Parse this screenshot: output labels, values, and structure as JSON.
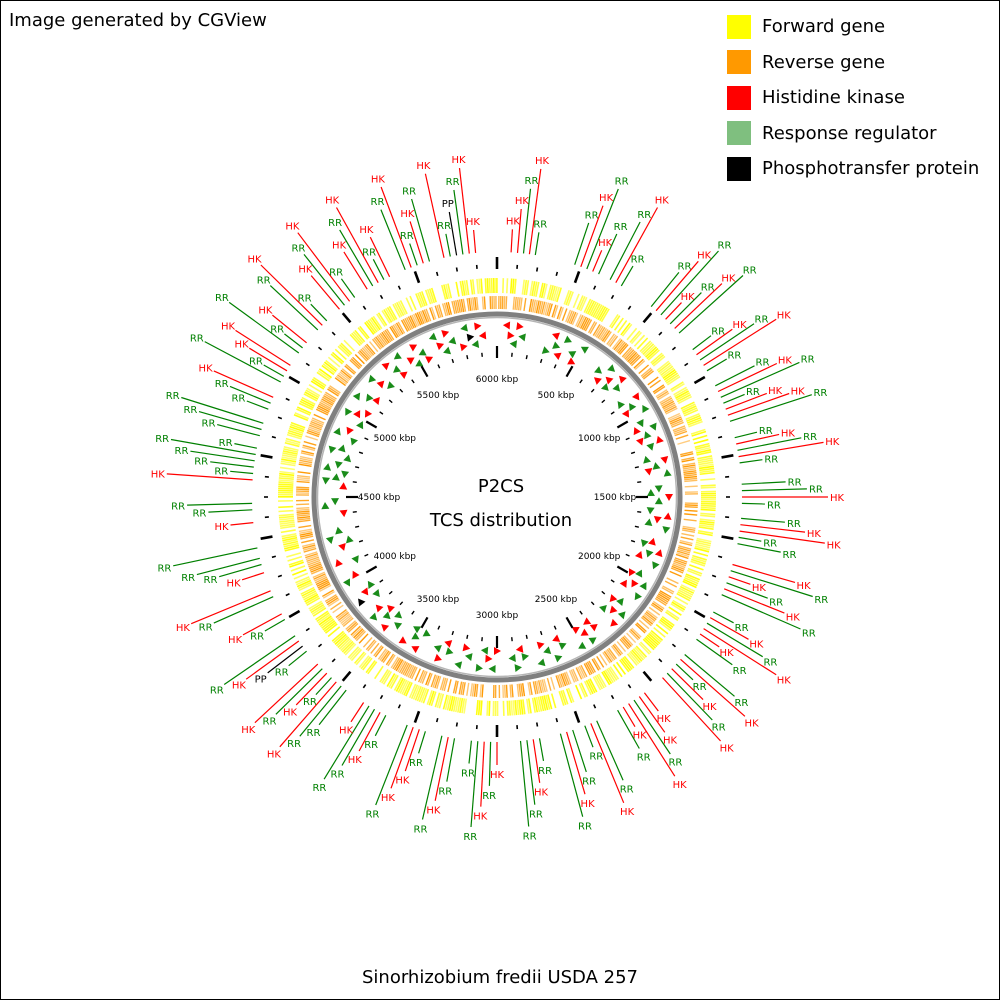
{
  "header": {
    "credit": "Image generated by CGView"
  },
  "legend": {
    "items": [
      {
        "label": "Forward gene",
        "color": "#FFFF00"
      },
      {
        "label": "Reverse gene",
        "color": "#FF9900"
      },
      {
        "label": "Histidine kinase",
        "color": "#FF0000"
      },
      {
        "label": "Response regulator",
        "color": "#7FBF7F"
      },
      {
        "label": "Phosphotransfer protein",
        "color": "#000000"
      }
    ]
  },
  "center": {
    "line1": "P2CS",
    "line2": "TCS distribution"
  },
  "caption": "Sinorhizobium fredii USDA 257",
  "genome": {
    "tick_labels": [
      "500 kbp",
      "1000 kbp",
      "1500 kbp",
      "2000 kbp",
      "2500 kbp",
      "3000 kbp",
      "3500 kbp",
      "4000 kbp",
      "4500 kbp",
      "5000 kbp",
      "5500 kbp",
      "6000 kbp"
    ],
    "track_colors": {
      "forward": "#FFFF00",
      "reverse": "#FF9900",
      "hk": "#FF0000",
      "rr_text": "#008000",
      "rr_line": "#008000",
      "rr_marker": "#1A8C1A",
      "pp": "#000000",
      "backbone": "#808080"
    }
  },
  "features": [
    {
      "t": "HK",
      "d": 3.3
    },
    {
      "t": "HK",
      "d": 4.8
    },
    {
      "t": "RR",
      "d": 6.2
    },
    {
      "t": "HK",
      "d": 7.6
    },
    {
      "t": "RR",
      "d": 9.0
    },
    {
      "t": "RR",
      "d": 18.5
    },
    {
      "t": "HK",
      "d": 20.0
    },
    {
      "t": "RR",
      "d": 21.5
    },
    {
      "t": "HK",
      "d": 23.0
    },
    {
      "t": "RR",
      "d": 24.5
    },
    {
      "t": "RR",
      "d": 27.5
    },
    {
      "t": "HK",
      "d": 29.0
    },
    {
      "t": "RR",
      "d": 30.5
    },
    {
      "t": "RR",
      "d": 39.0
    },
    {
      "t": "HK",
      "d": 40.5
    },
    {
      "t": "RR",
      "d": 42.0
    },
    {
      "t": "HK",
      "d": 43.5
    },
    {
      "t": "RR",
      "d": 45.0
    },
    {
      "t": "HK",
      "d": 46.5
    },
    {
      "t": "RR",
      "d": 48.0
    },
    {
      "t": "RR",
      "d": 53.0
    },
    {
      "t": "HK",
      "d": 54.5
    },
    {
      "t": "RR",
      "d": 56.0
    },
    {
      "t": "HK",
      "d": 57.5
    },
    {
      "t": "RR",
      "d": 59.0
    },
    {
      "t": "RR",
      "d": 63.0
    },
    {
      "t": "HK",
      "d": 64.5
    },
    {
      "t": "RR",
      "d": 66.0
    },
    {
      "t": "RR",
      "d": 67.5
    },
    {
      "t": "HK",
      "d": 69.0
    },
    {
      "t": "HK",
      "d": 70.5
    },
    {
      "t": "RR",
      "d": 72.0
    },
    {
      "t": "RR",
      "d": 76.0
    },
    {
      "t": "HK",
      "d": 77.5
    },
    {
      "t": "RR",
      "d": 79.0
    },
    {
      "t": "HK",
      "d": 80.5
    },
    {
      "t": "RR",
      "d": 82.0
    },
    {
      "t": "RR",
      "d": 87.0
    },
    {
      "t": "RR",
      "d": 88.5
    },
    {
      "t": "HK",
      "d": 90.0
    },
    {
      "t": "RR",
      "d": 91.5
    },
    {
      "t": "RR",
      "d": 95.0
    },
    {
      "t": "HK",
      "d": 96.5
    },
    {
      "t": "HK",
      "d": 98.0
    },
    {
      "t": "RR",
      "d": 99.5
    },
    {
      "t": "RR",
      "d": 101.0
    },
    {
      "t": "HK",
      "d": 106.0
    },
    {
      "t": "RR",
      "d": 107.5
    },
    {
      "t": "HK",
      "d": 109.0
    },
    {
      "t": "RR",
      "d": 110.5
    },
    {
      "t": "HK",
      "d": 112.0
    },
    {
      "t": "RR",
      "d": 113.5
    },
    {
      "t": "RR",
      "d": 118.0
    },
    {
      "t": "HK",
      "d": 119.5
    },
    {
      "t": "RR",
      "d": 121.0
    },
    {
      "t": "HK",
      "d": 122.5
    },
    {
      "t": "HK",
      "d": 124.0
    },
    {
      "t": "RR",
      "d": 125.5
    },
    {
      "t": "RR",
      "d": 130.0
    },
    {
      "t": "HK",
      "d": 131.5
    },
    {
      "t": "RR",
      "d": 133.0
    },
    {
      "t": "HK",
      "d": 134.5
    },
    {
      "t": "RR",
      "d": 136.0
    },
    {
      "t": "HK",
      "d": 137.5
    },
    {
      "t": "HK",
      "d": 143.0
    },
    {
      "t": "HK",
      "d": 144.5
    },
    {
      "t": "RR",
      "d": 146.0
    },
    {
      "t": "HK",
      "d": 147.5
    },
    {
      "t": "HK",
      "d": 149.0
    },
    {
      "t": "RR",
      "d": 150.5
    },
    {
      "t": "RR",
      "d": 156.0
    },
    {
      "t": "HK",
      "d": 157.5
    },
    {
      "t": "RR",
      "d": 159.0
    },
    {
      "t": "RR",
      "d": 162.0
    },
    {
      "t": "HK",
      "d": 163.5
    },
    {
      "t": "RR",
      "d": 165.0
    },
    {
      "t": "RR",
      "d": 170.0
    },
    {
      "t": "HK",
      "d": 171.5
    },
    {
      "t": "RR",
      "d": 173.0
    },
    {
      "t": "RR",
      "d": 174.5
    },
    {
      "t": "HK",
      "d": 180.0
    },
    {
      "t": "RR",
      "d": 181.5
    },
    {
      "t": "HK",
      "d": 183.0
    },
    {
      "t": "RR",
      "d": 184.5
    },
    {
      "t": "RR",
      "d": 186.0
    },
    {
      "t": "RR",
      "d": 190.0
    },
    {
      "t": "HK",
      "d": 191.5
    },
    {
      "t": "RR",
      "d": 193.0
    },
    {
      "t": "RR",
      "d": 197.0
    },
    {
      "t": "HK",
      "d": 198.5
    },
    {
      "t": "HK",
      "d": 200.0
    },
    {
      "t": "RR",
      "d": 201.5
    },
    {
      "t": "RR",
      "d": 207.0
    },
    {
      "t": "HK",
      "d": 208.5
    },
    {
      "t": "RR",
      "d": 210.0
    },
    {
      "t": "RR",
      "d": 211.5
    },
    {
      "t": "HK",
      "d": 213.0
    },
    {
      "t": "RR",
      "d": 218.0
    },
    {
      "t": "RR",
      "d": 219.5
    },
    {
      "t": "HK",
      "d": 221.0
    },
    {
      "t": "RR",
      "d": 222.5
    },
    {
      "t": "HK",
      "d": 224.0
    },
    {
      "t": "RR",
      "d": 225.5
    },
    {
      "t": "HK",
      "d": 227.0
    },
    {
      "t": "RR",
      "d": 231.0
    },
    {
      "t": "PP",
      "d": 232.5
    },
    {
      "t": "HK",
      "d": 234.0
    },
    {
      "t": "RR",
      "d": 235.5
    },
    {
      "t": "RR",
      "d": 240.0
    },
    {
      "t": "HK",
      "d": 241.5
    },
    {
      "t": "RR",
      "d": 246.0
    },
    {
      "t": "HK",
      "d": 247.5
    },
    {
      "t": "HK",
      "d": 252.0
    },
    {
      "t": "RR",
      "d": 254.0
    },
    {
      "t": "RR",
      "d": 255.5
    },
    {
      "t": "RR",
      "d": 258.0
    },
    {
      "t": "HK",
      "d": 264.0
    },
    {
      "t": "RR",
      "d": 267.0
    },
    {
      "t": "RR",
      "d": 268.5
    },
    {
      "t": "HK",
      "d": 274.0
    },
    {
      "t": "RR",
      "d": 275.5
    },
    {
      "t": "RR",
      "d": 277.0
    },
    {
      "t": "RR",
      "d": 278.5
    },
    {
      "t": "RR",
      "d": 280.0
    },
    {
      "t": "RR",
      "d": 281.5
    },
    {
      "t": "RR",
      "d": 284.5
    },
    {
      "t": "RR",
      "d": 286.0
    },
    {
      "t": "RR",
      "d": 287.5
    },
    {
      "t": "RR",
      "d": 291.0
    },
    {
      "t": "RR",
      "d": 292.5
    },
    {
      "t": "HK",
      "d": 294.0
    },
    {
      "t": "RR",
      "d": 298.0
    },
    {
      "t": "RR",
      "d": 299.5
    },
    {
      "t": "HK",
      "d": 301.0
    },
    {
      "t": "HK",
      "d": 302.5
    },
    {
      "t": "RR",
      "d": 306.0
    },
    {
      "t": "RR",
      "d": 307.5
    },
    {
      "t": "HK",
      "d": 309.0
    },
    {
      "t": "RR",
      "d": 313.0
    },
    {
      "t": "HK",
      "d": 314.5
    },
    {
      "t": "RR",
      "d": 316.0
    },
    {
      "t": "HK",
      "d": 320.0
    },
    {
      "t": "RR",
      "d": 321.5
    },
    {
      "t": "HK",
      "d": 323.0
    },
    {
      "t": "RR",
      "d": 324.5
    },
    {
      "t": "HK",
      "d": 328.0
    },
    {
      "t": "RR",
      "d": 329.5
    },
    {
      "t": "HK",
      "d": 331.0
    },
    {
      "t": "RR",
      "d": 332.5
    },
    {
      "t": "HK",
      "d": 334.0
    },
    {
      "t": "RR",
      "d": 338.0
    },
    {
      "t": "HK",
      "d": 339.5
    },
    {
      "t": "RR",
      "d": 341.0
    },
    {
      "t": "HK",
      "d": 342.5
    },
    {
      "t": "RR",
      "d": 344.0
    },
    {
      "t": "HK",
      "d": 347.5
    },
    {
      "t": "RR",
      "d": 349.0
    },
    {
      "t": "PP",
      "d": 350.5
    },
    {
      "t": "RR",
      "d": 352.0
    },
    {
      "t": "HK",
      "d": 353.5
    },
    {
      "t": "HK",
      "d": 355.0
    }
  ]
}
